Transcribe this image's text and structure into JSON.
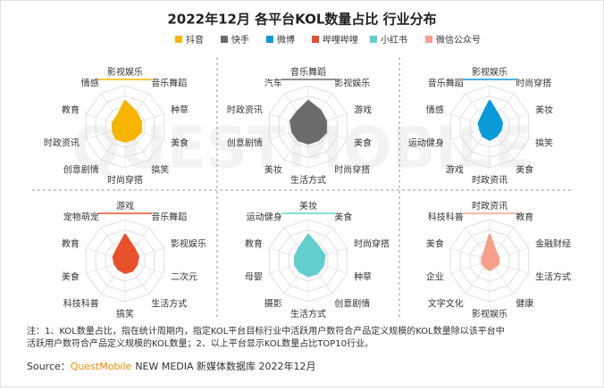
{
  "title": "2022年12月 各平台KOL数量占比 行业分布",
  "watermark": "QUESTMOBILE",
  "note": [
    "注：1、KOL数量占比，指在统计周期内，指定KOL平台目标行业中活跃用户数符合产品定义规模的KOL数量除以该平台中",
    "活跃用户数符合产品定义规模的KOL数量；2、以上平台显示KOL数量占比TOP10行业。"
  ],
  "source": {
    "prefix": "Source：",
    "brand": "QuestMobile",
    "rest": "NEW MEDIA 新媒体数据库 2022年12月"
  },
  "chart_data": [
    {
      "type": "radar",
      "categories": [
        "影视娱乐",
        "音乐舞蹈",
        "种草",
        "美食",
        "搞笑",
        "时尚穿搭",
        "创意剧情",
        "时政资讯",
        "教育",
        "情感"
      ],
      "series": [
        {
          "name": "抖音",
          "color": "#f7b500",
          "values": [
            14,
            10,
            9,
            9,
            8,
            8,
            8,
            7,
            7,
            7
          ]
        }
      ]
    },
    {
      "type": "radar",
      "categories": [
        "音乐舞蹈",
        "影视娱乐",
        "游戏",
        "美食",
        "时尚穿搭",
        "生活方式",
        "美妆",
        "创意剧情",
        "时政资讯",
        "汽车"
      ],
      "series": [
        {
          "name": "快手",
          "color": "#6b6b6b",
          "values": [
            14,
            11,
            10,
            10,
            9,
            9,
            9,
            9,
            10,
            10
          ]
        }
      ]
    },
    {
      "type": "radar",
      "categories": [
        "影视娱乐",
        "时尚穿搭",
        "美妆",
        "搞笑",
        "美食",
        "时政资讯",
        "游戏",
        "运动健身",
        "情感",
        "音乐舞蹈"
      ],
      "series": [
        {
          "name": "微博",
          "color": "#0b9ad8",
          "values": [
            16,
            9,
            8,
            7,
            7,
            8,
            7,
            6,
            7,
            8
          ]
        }
      ]
    },
    {
      "type": "radar",
      "categories": [
        "游戏",
        "音乐舞蹈",
        "影视娱乐",
        "二次元",
        "生活方式",
        "搞笑",
        "科技科普",
        "美食",
        "教育",
        "宠物萌宠"
      ],
      "series": [
        {
          "name": "哔哩哔哩",
          "color": "#e8502a",
          "values": [
            17,
            10,
            9,
            8,
            8,
            8,
            7,
            7,
            8,
            9
          ]
        }
      ]
    },
    {
      "type": "radar",
      "categories": [
        "美妆",
        "美食",
        "时尚穿搭",
        "种草",
        "创意剧情",
        "生活方式",
        "摄影",
        "母婴",
        "教育",
        "运动健身"
      ],
      "series": [
        {
          "name": "小红书",
          "color": "#63cfcc",
          "values": [
            15,
            10,
            10,
            9,
            9,
            9,
            8,
            8,
            8,
            9
          ]
        }
      ]
    },
    {
      "type": "radar",
      "categories": [
        "时政资讯",
        "教育",
        "金融财经",
        "生活方式",
        "健康",
        "影视娱乐",
        "文字文化",
        "企业",
        "美食",
        "科技科普"
      ],
      "series": [
        {
          "name": "微信公众号",
          "color": "#f6a08b",
          "values": [
            20,
            8,
            7,
            7,
            6,
            7,
            6,
            6,
            6,
            7
          ]
        }
      ]
    }
  ]
}
